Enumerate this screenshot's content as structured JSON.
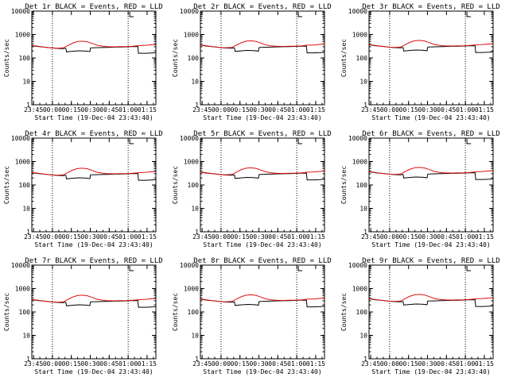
{
  "colors": {
    "events": "#000000",
    "lld": "#e01010",
    "axes": "#000000",
    "background": "#ffffff"
  },
  "common": {
    "ylabel": "Counts/sec",
    "xlabel": "Start Time (19-Dec-04 23:43:40)",
    "x_tick_labels": [
      "23:45",
      "00:00",
      "00:15",
      "00:30",
      "00:45",
      "01:00",
      "01:15"
    ],
    "x_tick_minutes": [
      1.33,
      16.33,
      31.33,
      46.33,
      61.33,
      76.33,
      91.33
    ],
    "xlim_minutes": [
      0,
      98.3
    ],
    "y_tick_labels": [
      "1",
      "10",
      "100",
      "1000",
      "10000"
    ],
    "y_tick_values": [
      1,
      10,
      100,
      1000,
      10000
    ],
    "ylim": [
      1,
      10000
    ],
    "y_scale": "log",
    "vertical_markers_minutes": [
      16.33,
      76.33
    ],
    "marker_line_style": "dotted"
  },
  "chart_data": [
    {
      "type": "line",
      "title": "Det 1r BLACK = Events, RED = LLD",
      "detector": "1r"
    },
    {
      "type": "line",
      "title": "Det 2r BLACK = Events, RED = LLD",
      "detector": "2r"
    },
    {
      "type": "line",
      "title": "Det 3r BLACK = Events, RED = LLD",
      "detector": "3r"
    },
    {
      "type": "line",
      "title": "Det 4r BLACK = Events, RED = LLD",
      "detector": "4r"
    },
    {
      "type": "line",
      "title": "Det 5r BLACK = Events, RED = LLD",
      "detector": "5r"
    },
    {
      "type": "line",
      "title": "Det 6r BLACK = Events, RED = LLD",
      "detector": "6r"
    },
    {
      "type": "line",
      "title": "Det 7r BLACK = Events, RED = LLD",
      "detector": "7r"
    },
    {
      "type": "line",
      "title": "Det 8r BLACK = Events, RED = LLD",
      "detector": "8r"
    },
    {
      "type": "line",
      "title": "Det 9r BLACK = Events, RED = LLD",
      "detector": "9r"
    }
  ],
  "series_template": {
    "events": {
      "x": [
        0,
        5,
        10,
        15,
        20,
        25,
        27,
        27.5,
        32,
        37,
        42,
        46,
        46.5,
        50,
        55,
        60,
        65,
        70,
        75,
        78,
        84,
        84.5,
        90,
        95,
        98.3
      ],
      "y": [
        350,
        320,
        300,
        280,
        265,
        260,
        270,
        190,
        200,
        210,
        205,
        195,
        280,
        285,
        290,
        295,
        300,
        305,
        310,
        315,
        320,
        165,
        165,
        170,
        175
      ]
    },
    "lld": {
      "x": [
        0,
        5,
        10,
        15,
        20,
        25,
        28,
        32,
        36,
        40,
        44,
        48,
        52,
        56,
        60,
        65,
        70,
        75,
        80,
        85,
        90,
        95,
        98.3
      ],
      "y": [
        360,
        330,
        300,
        280,
        270,
        280,
        340,
        440,
        520,
        540,
        510,
        430,
        360,
        330,
        315,
        310,
        315,
        320,
        330,
        350,
        360,
        380,
        390
      ]
    }
  }
}
